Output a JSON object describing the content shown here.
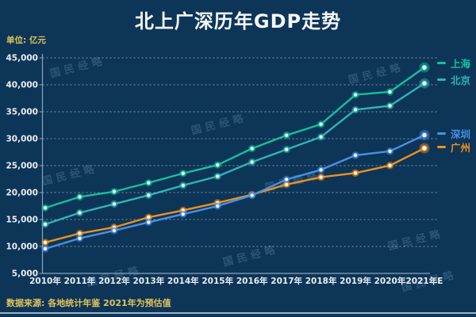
{
  "header": {
    "title": "北上广深历年GDP走势",
    "unit_label": "单位: 亿元"
  },
  "watermark": {
    "text": "国民经略"
  },
  "footer": {
    "source_note": "数据来源: 各地统计年鉴  2021年为预估值"
  },
  "colors": {
    "background": "#0d3557",
    "title_text": "#f5f7f9",
    "axis_text": "#e9eef3",
    "axis_line": "#8aa2bb",
    "gridline": "rgba(220,228,236,0.55)",
    "unit_text": "#e2c35c",
    "source_text": "#e2c35c",
    "divider": "#9fb3c4",
    "watermark": "rgba(130,172,214,0.26)"
  },
  "chart_data": {
    "type": "line",
    "title": "北上广深历年GDP走势",
    "unit": "亿元",
    "categories": [
      "2010年",
      "2011年",
      "2012年",
      "2013年",
      "2014年",
      "2015年",
      "2016年",
      "2017年",
      "2018年",
      "2019年",
      "2020年",
      "2021年E"
    ],
    "series": [
      {
        "id": "shanghai",
        "name": "上海",
        "color": "#14c0a0",
        "values": [
          17166,
          19196,
          20182,
          21818,
          23568,
          25123,
          28179,
          30633,
          32680,
          38155,
          38701,
          43215
        ]
      },
      {
        "id": "beijing",
        "name": "北京",
        "color": "#2fb5b5",
        "values": [
          14114,
          16252,
          17879,
          19501,
          21331,
          23015,
          25669,
          28000,
          30320,
          35371,
          36103,
          40270
        ]
      },
      {
        "id": "shenzhen",
        "name": "深圳",
        "color": "#4a90e2",
        "values": [
          9582,
          11506,
          12950,
          14500,
          16002,
          17503,
          19493,
          22438,
          24222,
          26927,
          27670,
          30665
        ]
      },
      {
        "id": "guangzhou",
        "name": "广州",
        "color": "#f0901e",
        "values": [
          10748,
          12423,
          13551,
          15420,
          16707,
          18100,
          19611,
          21503,
          22859,
          23629,
          25019,
          28232
        ]
      }
    ],
    "ylim": [
      5000,
      45000
    ],
    "ytick_step": 5000,
    "yticks": [
      "45,000",
      "40,000",
      "35,000",
      "30,000",
      "25,000",
      "20,000",
      "15,000",
      "10,000",
      "5,000"
    ],
    "xlabel": "",
    "ylabel": "",
    "grid": true,
    "legend_position": "right"
  }
}
